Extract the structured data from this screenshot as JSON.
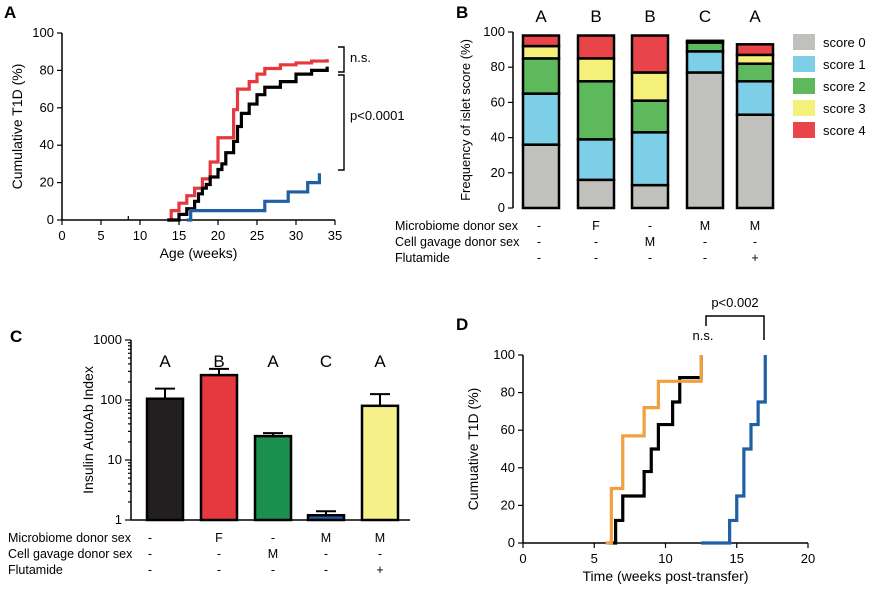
{
  "colors": {
    "score0": "#c0c0bc",
    "score1": "#7ccfe6",
    "score2": "#5db95b",
    "score3": "#f5f07a",
    "score4": "#e8444a",
    "red": "#e6393f",
    "black": "#000000",
    "blue": "#1f5fa3",
    "orange": "#f0a040",
    "green": "#1a8f4e",
    "yellow": "#f5f08a",
    "dark": "#231f20"
  },
  "panels": {
    "A": {
      "letter": "A"
    },
    "B": {
      "letter": "B"
    },
    "C": {
      "letter": "C"
    },
    "D": {
      "letter": "D"
    }
  },
  "chart_data": [
    {
      "panel": "A",
      "type": "line",
      "step": true,
      "xlabel": "Age (weeks)",
      "ylabel": "Cumulative T1D (%)",
      "xlim": [
        0,
        35
      ],
      "ylim": [
        0,
        100
      ],
      "xticks": [
        "0",
        "5",
        "10",
        "15",
        "20",
        "25",
        "30",
        "35"
      ],
      "yticks": [
        "0",
        "20",
        "40",
        "60",
        "80",
        "100"
      ],
      "series": [
        {
          "color": "#e6393f",
          "x": [
            13.5,
            14,
            15,
            16,
            17,
            18,
            19,
            20,
            21,
            22,
            22.5,
            24,
            25,
            26,
            28,
            30,
            32,
            34
          ],
          "y": [
            0,
            5,
            9,
            13,
            17,
            22,
            31,
            44,
            44,
            59,
            70,
            74,
            78,
            81,
            83,
            84,
            85,
            86
          ]
        },
        {
          "color": "#000000",
          "x": [
            13.5,
            15,
            16,
            17,
            17.5,
            18,
            18.5,
            19,
            20,
            20.5,
            21,
            22,
            22.5,
            23,
            24,
            25,
            26,
            28,
            30,
            32,
            34
          ],
          "y": [
            0,
            3,
            6,
            10,
            14,
            17,
            19,
            23,
            27,
            30,
            36,
            42,
            50,
            57,
            62,
            67,
            71,
            74,
            78,
            80,
            82
          ]
        },
        {
          "color": "#1f5fa3",
          "x": [
            16,
            16.5,
            22.5,
            26,
            29,
            31.5,
            33
          ],
          "y": [
            0,
            5,
            5,
            10,
            15,
            20,
            25
          ]
        }
      ],
      "annotations": {
        "ns": "n.s.",
        "p": "p<0.0001"
      }
    },
    {
      "panel": "B",
      "type": "bar",
      "stacked": true,
      "ylabel": "Frequency of islet score (%)",
      "ylim": [
        0,
        100
      ],
      "yticks": [
        "0",
        "20",
        "40",
        "60",
        "80",
        "100"
      ],
      "group_letters": [
        "A",
        "B",
        "B",
        "C",
        "A"
      ],
      "series": [
        {
          "name": "score 0",
          "values": [
            36,
            16,
            13,
            77,
            53
          ]
        },
        {
          "name": "score 1",
          "values": [
            29,
            23,
            30,
            12,
            19
          ]
        },
        {
          "name": "score 2",
          "values": [
            20,
            33,
            18,
            5,
            10
          ]
        },
        {
          "name": "score 3",
          "values": [
            7,
            13,
            16,
            0,
            5
          ]
        },
        {
          "name": "score 4",
          "values": [
            6,
            13,
            21,
            1,
            6
          ]
        }
      ],
      "conditions": [
        {
          "label": "Microbiome donor sex",
          "values": [
            "-",
            "F",
            "-",
            "M",
            "M"
          ]
        },
        {
          "label": "Cell gavage donor sex",
          "values": [
            "-",
            "-",
            "M",
            "-",
            "-"
          ]
        },
        {
          "label": "Flutamide",
          "values": [
            "-",
            "-",
            "-",
            "-",
            "+"
          ]
        }
      ]
    },
    {
      "panel": "C",
      "type": "bar",
      "log_y": true,
      "ylabel": "Insulin AutoAb Index",
      "ylim": [
        1,
        1000
      ],
      "yticks": [
        "1",
        "10",
        "100",
        "1000"
      ],
      "group_letters": [
        "A",
        "B",
        "A",
        "C",
        "A"
      ],
      "values": [
        105,
        260,
        25,
        1.2,
        80
      ],
      "errors": [
        155,
        330,
        28,
        1.4,
        125
      ],
      "conditions": [
        {
          "label": "Microbiome donor sex",
          "values": [
            "-",
            "F",
            "-",
            "M",
            "M"
          ]
        },
        {
          "label": "Cell gavage donor sex",
          "values": [
            "-",
            "-",
            "M",
            "-",
            "-"
          ]
        },
        {
          "label": "Flutamide",
          "values": [
            "-",
            "-",
            "-",
            "-",
            "+"
          ]
        }
      ]
    },
    {
      "panel": "D",
      "type": "line",
      "step": true,
      "xlabel": "Time (weeks post-transfer)",
      "ylabel": "Cumuative T1D (%)",
      "xlim": [
        0,
        20
      ],
      "ylim": [
        0,
        100
      ],
      "xticks": [
        "0",
        "5",
        "10",
        "15",
        "20"
      ],
      "yticks": [
        "0",
        "20",
        "40",
        "60",
        "80",
        "100"
      ],
      "series": [
        {
          "color": "#000000",
          "x": [
            6,
            6.5,
            7,
            8.5,
            9,
            9.5,
            10.5,
            11,
            12.5
          ],
          "y": [
            0,
            12,
            25,
            38,
            50,
            63,
            75,
            88,
            100
          ]
        },
        {
          "color": "#f0a040",
          "x": [
            5.8,
            6.2,
            7,
            8.5,
            9.5,
            10,
            12,
            12.5
          ],
          "y": [
            0,
            29,
            57,
            72,
            86,
            86,
            86,
            100
          ]
        },
        {
          "color": "#1f5fa3",
          "x": [
            12.5,
            14.5,
            15,
            15.5,
            16,
            16.5,
            17
          ],
          "y": [
            0,
            12,
            25,
            50,
            63,
            75,
            100
          ]
        }
      ],
      "annotations": {
        "ns": "n.s.",
        "p": "p<0.002"
      }
    }
  ]
}
